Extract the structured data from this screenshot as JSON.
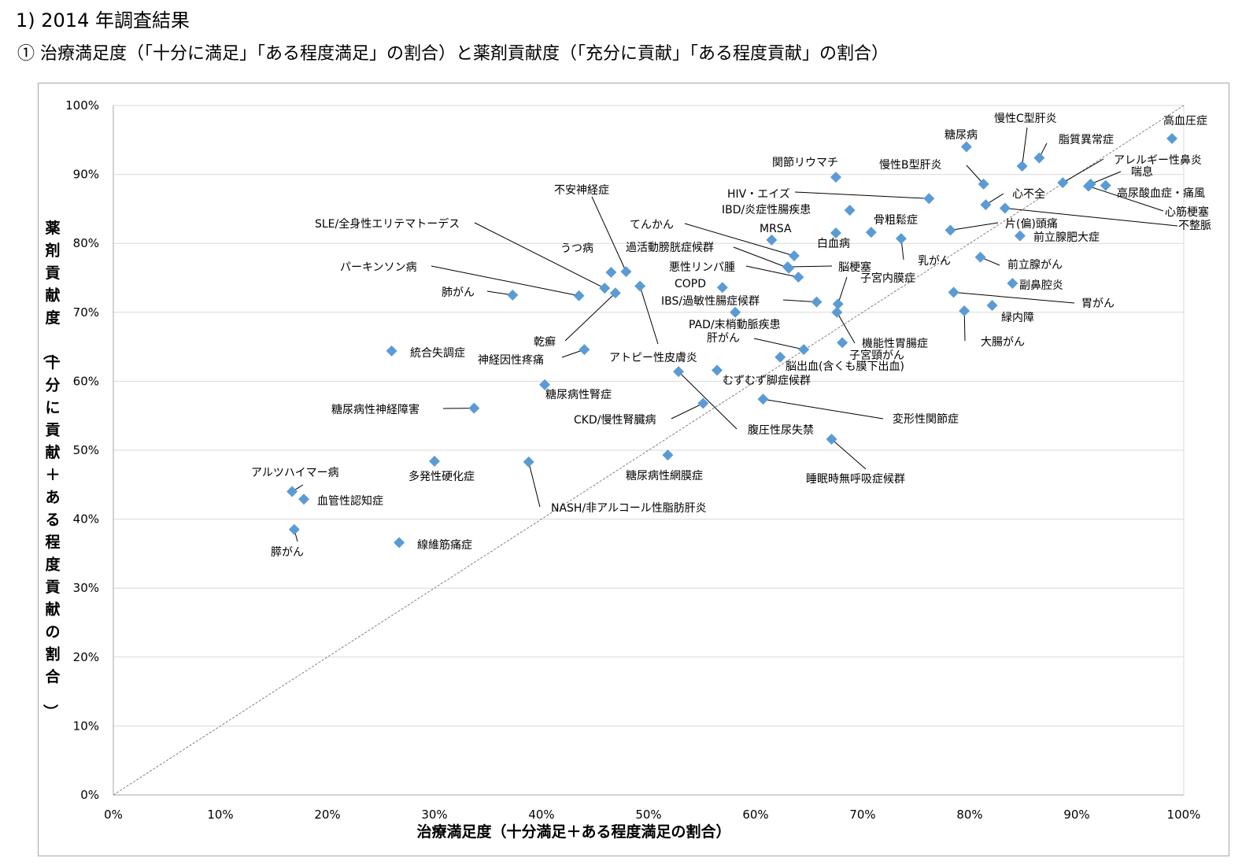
{
  "page": {
    "heading": "1) 2014 年調査結果",
    "subheading": "①  治療満足度（「十分に満足」「ある程度満足」の割合）と薬剤貢献度（「充分に貢献」「ある程度貢献」の割合）"
  },
  "colors": {
    "marker": "#5b9bd5",
    "grid": "#d9d9d9",
    "diagonal": "#808080",
    "leader": "#000000"
  },
  "chart_data": {
    "type": "scatter",
    "xlabel": "治療満足度（十分満足＋ある程度満足の割合）",
    "ylabel": "薬剤貢献度（十分に貢献＋ある程度貢献の割合）",
    "xlim": [
      0,
      100
    ],
    "ylim": [
      0,
      100
    ],
    "xticks": [
      "0%",
      "10%",
      "20%",
      "30%",
      "40%",
      "50%",
      "60%",
      "70%",
      "80%",
      "90%",
      "100%"
    ],
    "yticks": [
      "0%",
      "10%",
      "20%",
      "30%",
      "40%",
      "50%",
      "60%",
      "70%",
      "80%",
      "90%",
      "100%"
    ],
    "grid": true,
    "reference_line": "diagonal",
    "points": [
      {
        "label": "高血圧症",
        "x": 98.9,
        "y": 95.2
      },
      {
        "label": "脂質異常症",
        "x": 86.5,
        "y": 92.4
      },
      {
        "label": "慢性C型肝炎",
        "x": 84.9,
        "y": 91.2
      },
      {
        "label": "糖尿病",
        "x": 79.7,
        "y": 94.0
      },
      {
        "label": "慢性B型肝炎",
        "x": 81.3,
        "y": 88.6
      },
      {
        "label": "アレルギー性鼻炎",
        "x": 88.7,
        "y": 88.8
      },
      {
        "label": "喘息",
        "x": 91.3,
        "y": 88.6
      },
      {
        "label": "高尿酸血症・痛風",
        "x": 92.7,
        "y": 88.4
      },
      {
        "label": "心筋梗塞",
        "x": 91.1,
        "y": 88.3
      },
      {
        "label": "心不全",
        "x": 81.5,
        "y": 85.6
      },
      {
        "label": "不整脈",
        "x": 83.3,
        "y": 85.1
      },
      {
        "label": "片(偏)頭痛",
        "x": 78.2,
        "y": 81.9
      },
      {
        "label": "前立腺肥大症",
        "x": 84.7,
        "y": 81.1
      },
      {
        "label": "前立腺がん",
        "x": 81.0,
        "y": 78.0
      },
      {
        "label": "副鼻腔炎",
        "x": 84.0,
        "y": 74.2
      },
      {
        "label": "胃がん",
        "x": 78.5,
        "y": 72.9
      },
      {
        "label": "緑内障",
        "x": 82.1,
        "y": 71.0
      },
      {
        "label": "大腸がん",
        "x": 79.5,
        "y": 70.2
      },
      {
        "label": "関節リウマチ",
        "x": 67.5,
        "y": 89.6
      },
      {
        "label": "HIV・エイズ",
        "x": 76.2,
        "y": 86.5
      },
      {
        "label": "IBD/炎症性腸疾患",
        "x": 68.8,
        "y": 84.8
      },
      {
        "label": "骨粗鬆症",
        "x": 70.8,
        "y": 81.6
      },
      {
        "label": "白血病",
        "x": 67.5,
        "y": 81.5
      },
      {
        "label": "乳がん",
        "x": 73.6,
        "y": 80.7
      },
      {
        "label": "MRSA",
        "x": 61.5,
        "y": 80.5
      },
      {
        "label": "てんかん",
        "x": 63.6,
        "y": 78.2
      },
      {
        "label": "過活動膀胱症候群",
        "x": 63.1,
        "y": 76.4
      },
      {
        "label": "脳梗塞",
        "x": 63.0,
        "y": 76.6
      },
      {
        "label": "悪性リンパ腫",
        "x": 64.0,
        "y": 75.1
      },
      {
        "label": "子宮内膜症",
        "x": 67.7,
        "y": 71.2
      },
      {
        "label": "COPD",
        "x": 56.9,
        "y": 73.6
      },
      {
        "label": "IBS/過敏性腸症候群",
        "x": 65.7,
        "y": 71.5
      },
      {
        "label": "機能性胃腸症",
        "x": 67.6,
        "y": 70.0
      },
      {
        "label": "子宮頸がん",
        "x": 68.1,
        "y": 65.6
      },
      {
        "label": "PAD/末梢動脈疾患",
        "x": 58.1,
        "y": 70.0
      },
      {
        "label": "肝がん",
        "x": 64.5,
        "y": 64.6
      },
      {
        "label": "脳出血(含くも膜下出血)",
        "x": 62.3,
        "y": 63.5
      },
      {
        "label": "むずむず脚症候群",
        "x": 56.4,
        "y": 61.6
      },
      {
        "label": "不安神経症",
        "x": 47.9,
        "y": 75.9
      },
      {
        "label": "うつ病",
        "x": 46.5,
        "y": 75.8
      },
      {
        "label": "アトピー性皮膚炎",
        "x": 49.2,
        "y": 73.8
      },
      {
        "label": "SLE/全身性エリテマトーデス",
        "x": 45.9,
        "y": 73.5
      },
      {
        "label": "乾癬",
        "x": 46.9,
        "y": 72.8
      },
      {
        "label": "パーキンソン病",
        "x": 43.5,
        "y": 72.4
      },
      {
        "label": "肺がん",
        "x": 37.3,
        "y": 72.5
      },
      {
        "label": "神経因性疼痛",
        "x": 44.0,
        "y": 64.6
      },
      {
        "label": "統合失調症",
        "x": 26.0,
        "y": 64.4
      },
      {
        "label": "糖尿病性腎症",
        "x": 40.3,
        "y": 59.5
      },
      {
        "label": "糖尿病性神経障害",
        "x": 33.7,
        "y": 56.1
      },
      {
        "label": "腹圧性尿失禁",
        "x": 52.8,
        "y": 61.4
      },
      {
        "label": "CKD/慢性腎臓病",
        "x": 55.1,
        "y": 56.8
      },
      {
        "label": "変形性関節症",
        "x": 60.7,
        "y": 57.4
      },
      {
        "label": "睡眠時無呼吸症候群",
        "x": 67.1,
        "y": 51.6
      },
      {
        "label": "糖尿病性網膜症",
        "x": 51.8,
        "y": 49.3
      },
      {
        "label": "多発性硬化症",
        "x": 30.0,
        "y": 48.4
      },
      {
        "label": "NASH/非アルコール性脂肪肝炎",
        "x": 38.8,
        "y": 48.3
      },
      {
        "label": "アルツハイマー病",
        "x": 16.7,
        "y": 44.0
      },
      {
        "label": "血管性認知症",
        "x": 17.8,
        "y": 42.9
      },
      {
        "label": "膵がん",
        "x": 16.9,
        "y": 38.5
      },
      {
        "label": "線維筋痛症",
        "x": 26.7,
        "y": 36.6
      }
    ]
  }
}
